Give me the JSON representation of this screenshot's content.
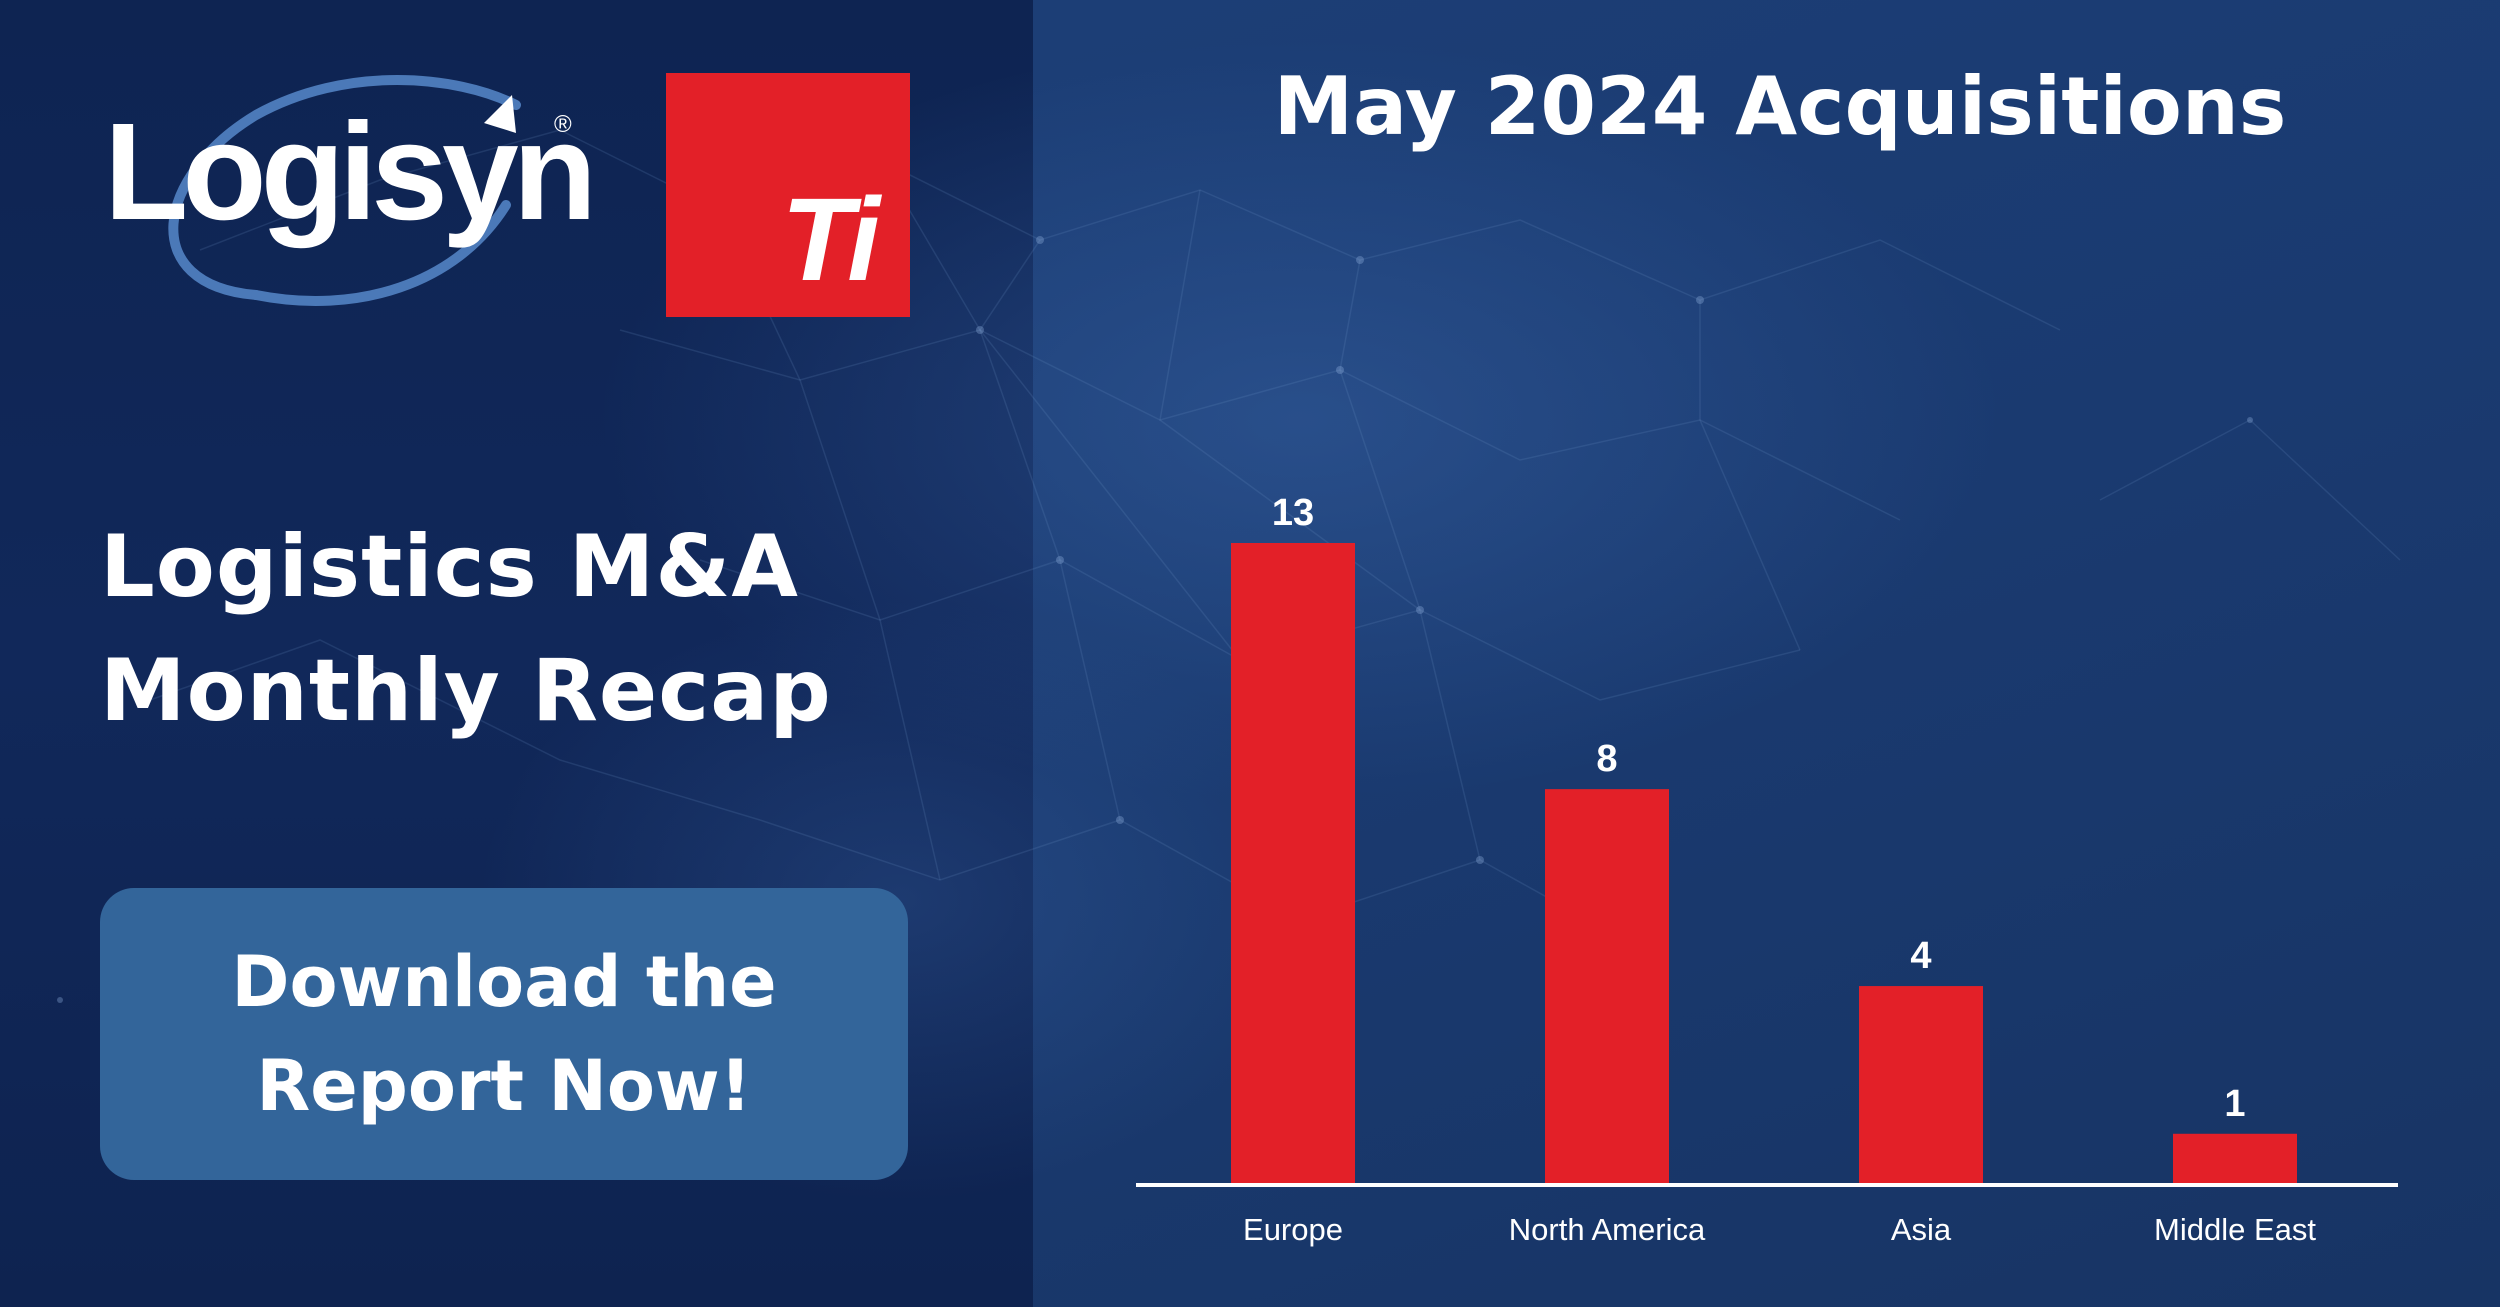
{
  "brand": {
    "logo_text": "Logisyn",
    "logo_registered": "®",
    "badge_text": "Ti",
    "accent_red": "#e32028",
    "cta_blue": "#33659a"
  },
  "headline": {
    "line1": "Logistics M&A",
    "line2": "Monthly Recap"
  },
  "cta": {
    "line1": "Download the",
    "line2": "Report Now!"
  },
  "chart_data": {
    "type": "bar",
    "title": "May 2024 Acquisitions",
    "categories": [
      "Europe",
      "North America",
      "Asia",
      "Middle East"
    ],
    "values": [
      13,
      8,
      4,
      1
    ],
    "data_labels": [
      "13",
      "8",
      "4",
      "1"
    ],
    "ylim": [
      0,
      13
    ],
    "bar_color": "#e32028",
    "grid": false,
    "legend": "none"
  }
}
